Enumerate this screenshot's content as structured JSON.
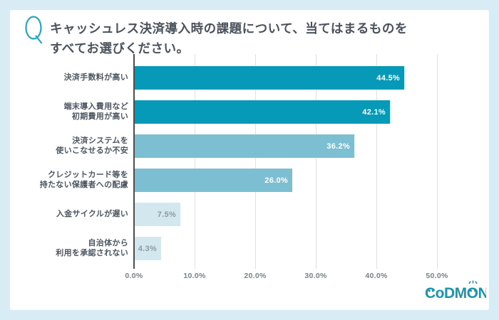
{
  "question": {
    "icon": "Q",
    "text_lines": [
      "キャッシュレス決済導入時の課題について、当てはまるものを",
      "すべてお選びください。"
    ]
  },
  "chart_data": {
    "type": "bar",
    "orientation": "horizontal",
    "title": "キャッシュレス決済導入時の課題について、当てはまるものをすべてお選びください。",
    "categories": [
      "決済手数料が高い",
      "端末導入費用など初期費用が高い",
      "決済システムを使いこなせるか不安",
      "クレジットカード等を持たない保護者への配慮",
      "入金サイクルが遅い",
      "自治体から利用を承認されない"
    ],
    "category_lines": [
      [
        "決済手数料が高い"
      ],
      [
        "端末導入費用など",
        "初期費用が高い"
      ],
      [
        "決済システムを",
        "使いこなせるか不安"
      ],
      [
        "クレジットカード等を",
        "持たない保護者への配慮"
      ],
      [
        "入金サイクルが遅い"
      ],
      [
        "自治体から",
        "利用を承認されない"
      ]
    ],
    "values": [
      44.5,
      42.1,
      36.2,
      26.0,
      7.5,
      4.3
    ],
    "value_labels": [
      "44.5%",
      "42.1%",
      "36.2%",
      "26.0%",
      "7.5%",
      "4.3%"
    ],
    "bar_colors": [
      "#0799b8",
      "#0799b8",
      "#7dbfd2",
      "#7dbfd2",
      "#d3e7ee",
      "#d3e7ee"
    ],
    "value_label_colors": [
      "#ffffff",
      "#ffffff",
      "#ffffff",
      "#ffffff",
      "#8d9aa4",
      "#8d9aa4"
    ],
    "x_tick_labels": [
      "0.0%",
      "10.0%",
      "20.0%",
      "30.0%",
      "40.0%",
      "50.0%"
    ],
    "x_tick_values": [
      0,
      10,
      20,
      30,
      40,
      50
    ],
    "xlim": [
      0,
      50
    ],
    "grid": true,
    "legend": false,
    "xlabel": "",
    "ylabel": ""
  },
  "footer": {
    "logo_text": "CoDMON"
  },
  "colors": {
    "page_background": "#d8ecf5",
    "card_background": "#ffffff",
    "question_text": "#4a525c",
    "q_icon": "#29a4c0",
    "category_label": "#4c5660",
    "axis_tick_text": "#75838c",
    "gridline": "#e0e0e0",
    "axis_line": "#4d4d4d",
    "logo": "#1d93ae"
  }
}
